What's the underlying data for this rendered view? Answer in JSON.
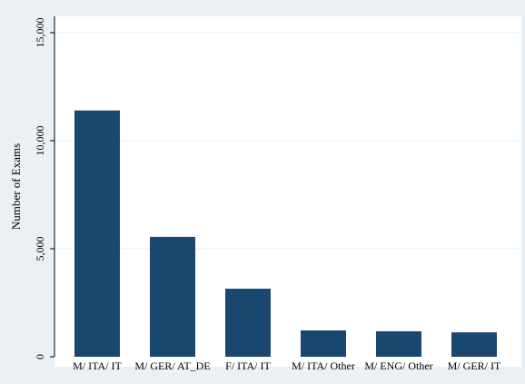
{
  "chart_data": {
    "type": "bar",
    "title": "",
    "xlabel": "",
    "ylabel": "Number of Exams",
    "ylim": [
      0,
      15000
    ],
    "yticks": [
      0,
      5000,
      10000,
      15000
    ],
    "ytick_labels": [
      "0",
      "5,000",
      "10,000",
      "15,000"
    ],
    "grid": true,
    "categories": [
      "M/ ITA/ IT",
      "M/ GER/ AT_DE",
      "F/ ITA/ IT",
      "M/ ITA/ Other",
      "M/ ENG/ Other",
      "M/ GER/ IT"
    ],
    "values": [
      11400,
      5550,
      3150,
      1220,
      1180,
      1130
    ],
    "colors": {
      "bar": "#1a476f",
      "background": "#eaf0f4",
      "plot": "#ffffff",
      "grid": "#eaf0f4",
      "axis": "#000000"
    }
  }
}
